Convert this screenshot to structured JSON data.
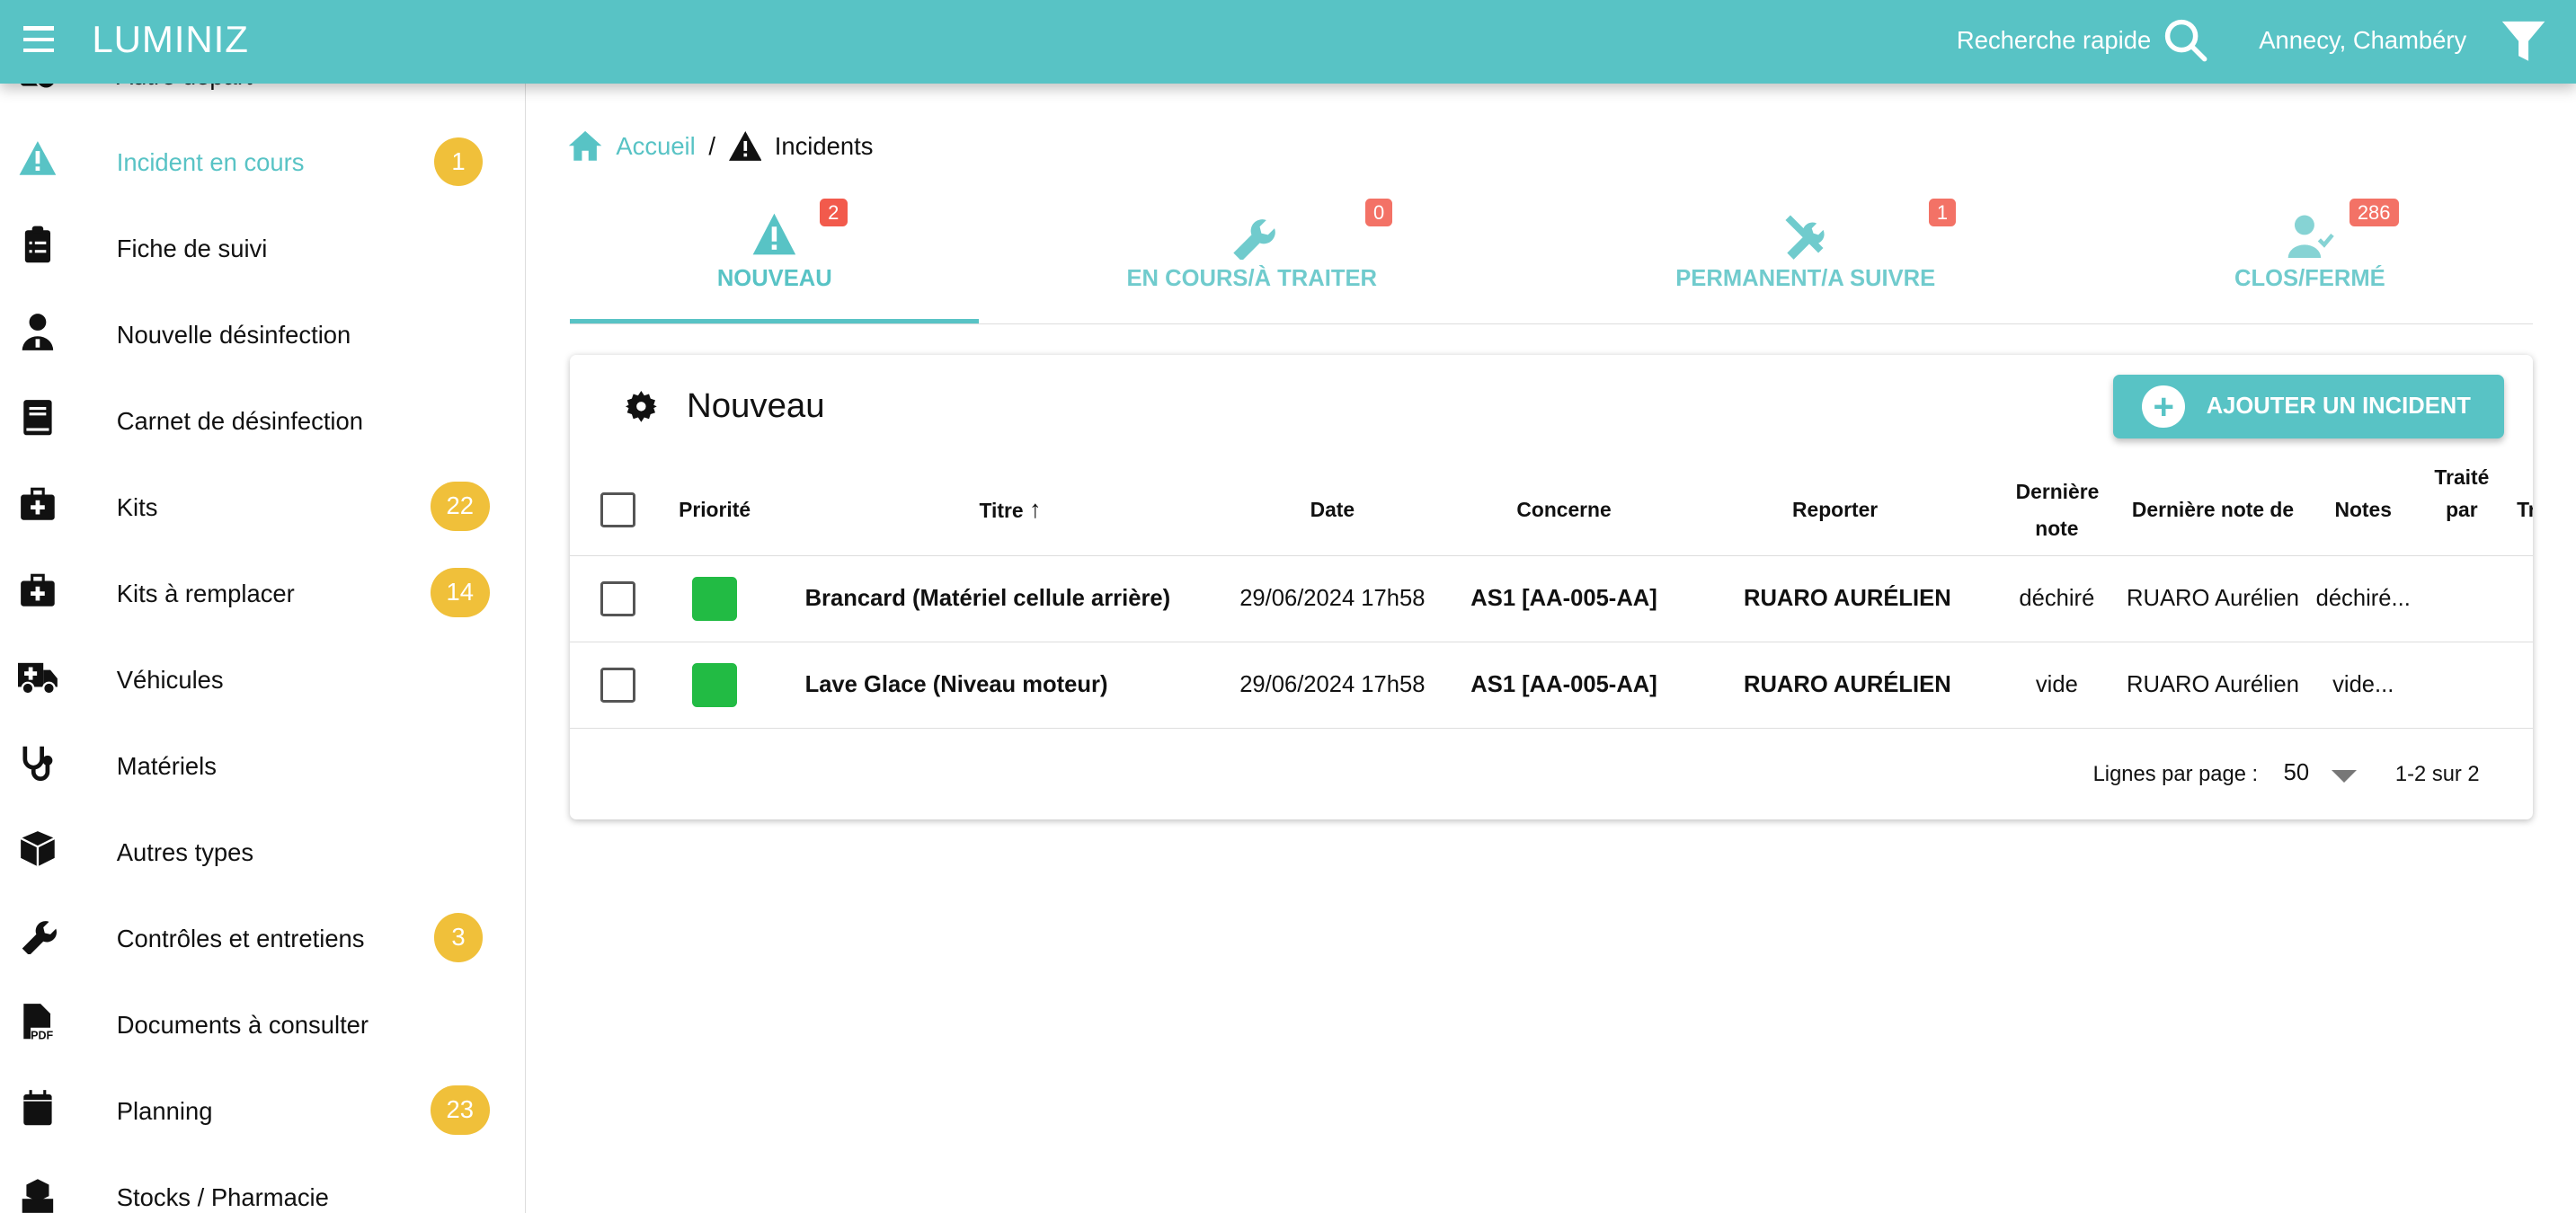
{
  "header": {
    "title": "LUMINIZ",
    "quick_search": "Recherche rapide",
    "location": "Annecy, Chambéry"
  },
  "colors": {
    "primary": "#58c3c5",
    "badge_yellow": "#f0c03a",
    "badge_red": "#f25a4c",
    "priority_green": "#22bb44"
  },
  "sidebar": {
    "items": [
      {
        "label": "Autre depart",
        "icon": "car-check-icon",
        "badge": null
      },
      {
        "label": "Incident en cours",
        "icon": "warning-icon",
        "badge": "1",
        "active": true
      },
      {
        "label": "Fiche de suivi",
        "icon": "clipboard-list-icon",
        "badge": null
      },
      {
        "label": "Nouvelle désinfection",
        "icon": "doctor-icon",
        "badge": null
      },
      {
        "label": "Carnet de désinfection",
        "icon": "book-icon",
        "badge": null
      },
      {
        "label": "Kits",
        "icon": "medkit-icon",
        "badge": "22"
      },
      {
        "label": "Kits à remplacer",
        "icon": "medkit-icon",
        "badge": "14"
      },
      {
        "label": "Véhicules",
        "icon": "ambulance-icon",
        "badge": null
      },
      {
        "label": "Matériels",
        "icon": "stethoscope-icon",
        "badge": null
      },
      {
        "label": "Autres types",
        "icon": "box-icon",
        "badge": null
      },
      {
        "label": "Contrôles et entretiens",
        "icon": "wrench-icon",
        "badge": "3"
      },
      {
        "label": "Documents à consulter",
        "icon": "pdf-file-icon",
        "badge": null
      },
      {
        "label": "Planning",
        "icon": "calendar-icon",
        "badge": "23"
      },
      {
        "label": "Stocks / Pharmacie",
        "icon": "boxes-icon",
        "badge": null
      }
    ]
  },
  "breadcrumb": {
    "home": "Accueil",
    "separator": "/",
    "current": "Incidents"
  },
  "tabs": [
    {
      "label": "NOUVEAU",
      "badge": "2",
      "icon": "warning-icon",
      "active": true
    },
    {
      "label": "EN COURS/À TRAITER",
      "badge": "0",
      "icon": "wrench-icon"
    },
    {
      "label": "PERMANENT/A SUIVRE",
      "badge": "1",
      "icon": "tools-icon"
    },
    {
      "label": "CLOS/FERMÉ",
      "badge": "286",
      "icon": "user-check-icon"
    }
  ],
  "card": {
    "title": "Nouveau",
    "add_button": "AJOUTER UN INCIDENT"
  },
  "table": {
    "columns": [
      "Priorité",
      "Titre",
      "Date",
      "Concerne",
      "Reporter",
      "Dernière note",
      "Dernière note de",
      "Notes",
      "Traité par",
      "Tr"
    ],
    "sort": {
      "column": "Titre",
      "direction": "asc",
      "arrow": "↑"
    },
    "rows": [
      {
        "priority": "green",
        "titre": "Brancard (Matériel cellule arrière)",
        "date": "29/06/2024 17h58",
        "concerne": "AS1 [AA-005-AA]",
        "reporter": "RUARO AURÉLIEN",
        "derniere_note": "déchiré",
        "derniere_note_de": "RUARO Aurélien",
        "notes": "déchiré...",
        "traite_par": ""
      },
      {
        "priority": "green",
        "titre": "Lave Glace (Niveau moteur)",
        "date": "29/06/2024 17h58",
        "concerne": "AS1 [AA-005-AA]",
        "reporter": "RUARO AURÉLIEN",
        "derniere_note": "vide",
        "derniere_note_de": "RUARO Aurélien",
        "notes": "vide...",
        "traite_par": ""
      }
    ]
  },
  "pagination": {
    "rows_per_page_label": "Lignes par page :",
    "rows_per_page": "50",
    "range": "1-2 sur 2"
  }
}
